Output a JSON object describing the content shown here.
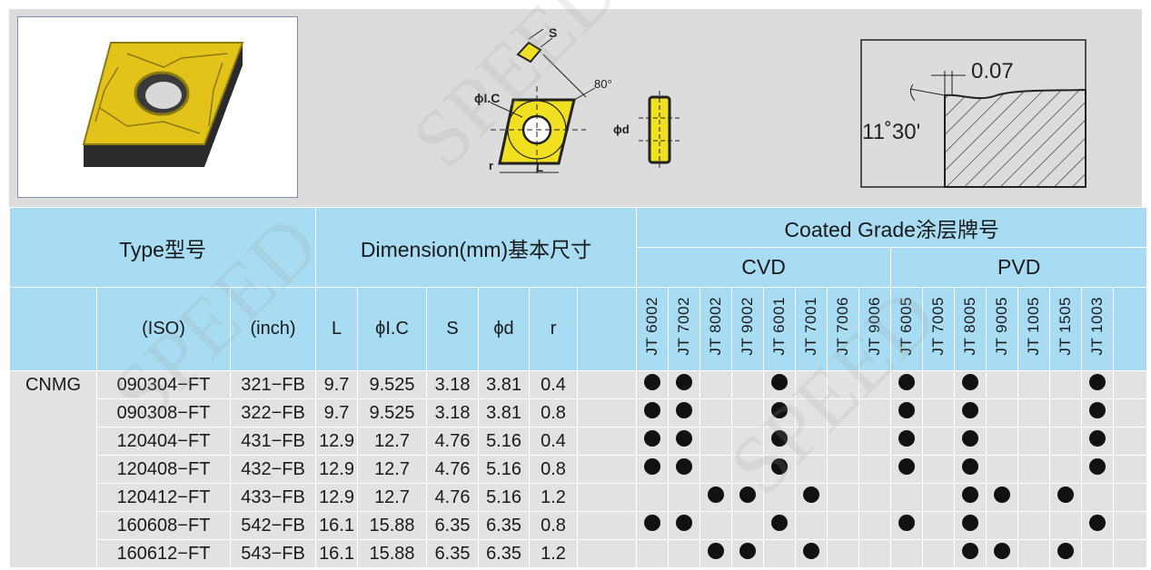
{
  "diagram": {
    "s_label": "S",
    "angle_label": "80°",
    "ic_label": "ϕI.C",
    "r_label": "r",
    "l_label": "L",
    "d_label": "ϕd",
    "edge_width_label": "0.07",
    "edge_angle_label": "11˚30'"
  },
  "header": {
    "type": "Type型号",
    "dimension": "Dimension(mm)基本尺寸",
    "coated": "Coated Grade涂层牌号",
    "cvd": "CVD",
    "pvd": "PVD",
    "iso": "(ISO)",
    "inch": "(inch)",
    "dim_cols": [
      "L",
      "ϕI.C",
      "S",
      "ϕd",
      "r"
    ],
    "grades": [
      "JT 6002",
      "JT 7002",
      "JT 8002",
      "JT 9002",
      "JT 6001",
      "JT 7001",
      "JT 7006",
      "JT 9006",
      "JT 6005",
      "JT 7005",
      "JT 8005",
      "JT 9005",
      "JT 1005",
      "JT 1505",
      "JT 1003"
    ]
  },
  "series": "CNMG",
  "rows": [
    {
      "iso": "090304−FT",
      "inch": "321−FB",
      "L": "9.7",
      "ic": "9.525",
      "S": "3.18",
      "d": "3.81",
      "r": "0.4",
      "dots": [
        1,
        1,
        0,
        0,
        1,
        0,
        0,
        0,
        1,
        0,
        1,
        0,
        0,
        0,
        1
      ]
    },
    {
      "iso": "090308−FT",
      "inch": "322−FB",
      "L": "9.7",
      "ic": "9.525",
      "S": "3.18",
      "d": "3.81",
      "r": "0.8",
      "dots": [
        1,
        1,
        0,
        0,
        1,
        0,
        0,
        0,
        1,
        0,
        1,
        0,
        0,
        0,
        1
      ]
    },
    {
      "iso": "120404−FT",
      "inch": "431−FB",
      "L": "12.9",
      "ic": "12.7",
      "S": "4.76",
      "d": "5.16",
      "r": "0.4",
      "dots": [
        1,
        1,
        0,
        0,
        1,
        0,
        0,
        0,
        1,
        0,
        1,
        0,
        0,
        0,
        1
      ]
    },
    {
      "iso": "120408−FT",
      "inch": "432−FB",
      "L": "12.9",
      "ic": "12.7",
      "S": "4.76",
      "d": "5.16",
      "r": "0.8",
      "dots": [
        1,
        1,
        0,
        0,
        1,
        0,
        0,
        0,
        1,
        0,
        1,
        0,
        0,
        0,
        1
      ]
    },
    {
      "iso": "120412−FT",
      "inch": "433−FB",
      "L": "12.9",
      "ic": "12.7",
      "S": "4.76",
      "d": "5.16",
      "r": "1.2",
      "dots": [
        0,
        0,
        1,
        1,
        0,
        1,
        0,
        0,
        0,
        0,
        1,
        1,
        0,
        1,
        0
      ]
    },
    {
      "iso": "160608−FT",
      "inch": "542−FB",
      "L": "16.1",
      "ic": "15.88",
      "S": "6.35",
      "d": "6.35",
      "r": "0.8",
      "dots": [
        1,
        1,
        0,
        0,
        1,
        0,
        0,
        0,
        1,
        0,
        1,
        0,
        0,
        0,
        1
      ]
    },
    {
      "iso": "160612−FT",
      "inch": "543−FB",
      "L": "16.1",
      "ic": "15.88",
      "S": "6.35",
      "d": "6.35",
      "r": "1.2",
      "dots": [
        0,
        0,
        1,
        1,
        0,
        1,
        0,
        0,
        0,
        0,
        1,
        1,
        0,
        1,
        0
      ]
    }
  ]
}
